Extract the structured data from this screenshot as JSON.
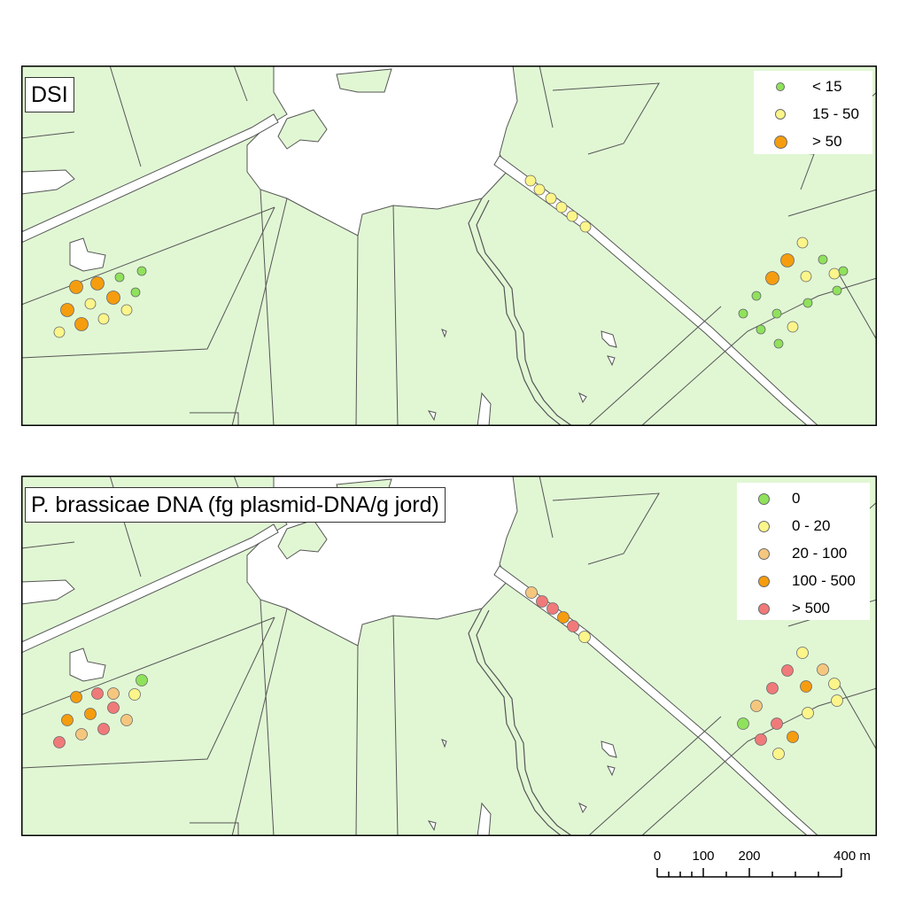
{
  "panels": [
    {
      "id": "dsi",
      "title": "DSI",
      "legend": [
        {
          "label": "< 15",
          "color": "#8fe25c",
          "size": "small"
        },
        {
          "label": "15 - 50",
          "color": "#fbf58a",
          "size": "medium"
        },
        {
          "label": "> 50",
          "color": "#f59d0e",
          "size": "large"
        }
      ]
    },
    {
      "id": "dna",
      "title": "P. brassicae DNA (fg plasmid-DNA/g jord)",
      "legend": [
        {
          "label": "0",
          "color": "#8fe25c"
        },
        {
          "label": "0 - 20",
          "color": "#fbf58a"
        },
        {
          "label": "20 - 100",
          "color": "#f5c77e"
        },
        {
          "label": "100 - 500",
          "color": "#f59d0e"
        },
        {
          "label": "> 500",
          "color": "#f07a7a"
        }
      ]
    }
  ],
  "scale_bar": {
    "labels": [
      "0",
      "100",
      "200",
      "400 m"
    ],
    "values": [
      0,
      100,
      200,
      400
    ],
    "unit": "m"
  },
  "colors": {
    "land": "#e1f7d4",
    "road": "#ffffff",
    "border": "#000000",
    "outline": "#555555"
  }
}
